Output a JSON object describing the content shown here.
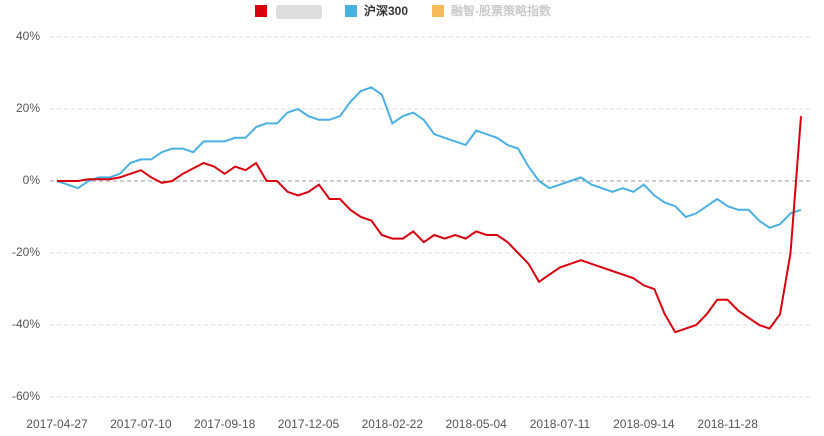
{
  "chart_data": {
    "type": "line",
    "categories": [
      "2017-04-27",
      null,
      null,
      null,
      null,
      null,
      null,
      null,
      "2017-07-10",
      null,
      null,
      null,
      null,
      null,
      null,
      null,
      "2017-09-18",
      null,
      null,
      null,
      null,
      null,
      null,
      null,
      "2017-12-05",
      null,
      null,
      null,
      null,
      null,
      null,
      null,
      "2018-02-22",
      null,
      null,
      null,
      null,
      null,
      null,
      null,
      "2018-05-04",
      null,
      null,
      null,
      null,
      null,
      null,
      null,
      "2018-07-11",
      null,
      null,
      null,
      null,
      null,
      null,
      null,
      "2018-09-14",
      null,
      null,
      null,
      null,
      null,
      null,
      null,
      "2018-11-28",
      null,
      null,
      null,
      null,
      null,
      null,
      null
    ],
    "series": [
      {
        "color": "#d7000f",
        "values": [
          0,
          0,
          0,
          0.5,
          0.5,
          0.5,
          1,
          2,
          3,
          1,
          -0.5,
          0,
          2,
          3.5,
          5,
          4,
          2,
          4,
          3,
          5,
          0,
          0,
          -3,
          -4,
          -3,
          -1,
          -5,
          -5,
          -8,
          -10,
          -11,
          -15,
          -16,
          -16,
          -14,
          -17,
          -15,
          -16,
          -15,
          -16,
          -14,
          -15,
          -15,
          -17,
          -20,
          -23,
          -28,
          -26,
          -24,
          -23,
          -22,
          -23,
          -24,
          -25,
          -26,
          -27,
          -29,
          -30,
          -37,
          -42,
          -41,
          -40,
          -37,
          -33,
          -33,
          -36,
          -38,
          -40,
          -41,
          -37,
          -20,
          18
        ]
      },
      {
        "name": "沪深300",
        "color": "#4ab0e2",
        "values": [
          0,
          -1,
          -2,
          0,
          1,
          1,
          2,
          5,
          6,
          6,
          8,
          9,
          9,
          8,
          11,
          11,
          11,
          12,
          12,
          15,
          16,
          16,
          19,
          20,
          18,
          17,
          17,
          18,
          22,
          25,
          26,
          24,
          16,
          18,
          19,
          17,
          13,
          12,
          11,
          10,
          14,
          13,
          12,
          10,
          9,
          4,
          0,
          -2,
          -1,
          0,
          1,
          -1,
          -2,
          -3,
          -2,
          -3,
          -1,
          -4,
          -6,
          -7,
          -10,
          -9,
          -7,
          -5,
          -7,
          -8,
          -8,
          -11,
          -13,
          -12,
          -9,
          -8
        ]
      },
      {
        "name": "融智-股票策略指数",
        "color": "#f39c12",
        "visible": false,
        "values": [
          null,
          null,
          null,
          null,
          null,
          null,
          null,
          null,
          null,
          null,
          null,
          null,
          null,
          null,
          null,
          null,
          null,
          null,
          null,
          null,
          null,
          null,
          null,
          null,
          null,
          null,
          null,
          null,
          null,
          null,
          null,
          null,
          null,
          null,
          null,
          null,
          null,
          null,
          null,
          null,
          null,
          null,
          null,
          null,
          null,
          null,
          null,
          null,
          null,
          null,
          null,
          null,
          null,
          null,
          null,
          null,
          null,
          null,
          null,
          null,
          null,
          null,
          null,
          null,
          null,
          null,
          null,
          null,
          null,
          null,
          null,
          null
        ]
      }
    ],
    "ylim": [
      -60,
      40
    ],
    "yticks": [
      {
        "value": -60,
        "label": "-60%"
      },
      {
        "value": -40,
        "label": "-40%"
      },
      {
        "value": -20,
        "label": "-20%"
      },
      {
        "value": 0,
        "label": "0%"
      },
      {
        "value": 20,
        "label": "20%"
      },
      {
        "value": 40,
        "label": "40%"
      }
    ],
    "grid": true
  }
}
